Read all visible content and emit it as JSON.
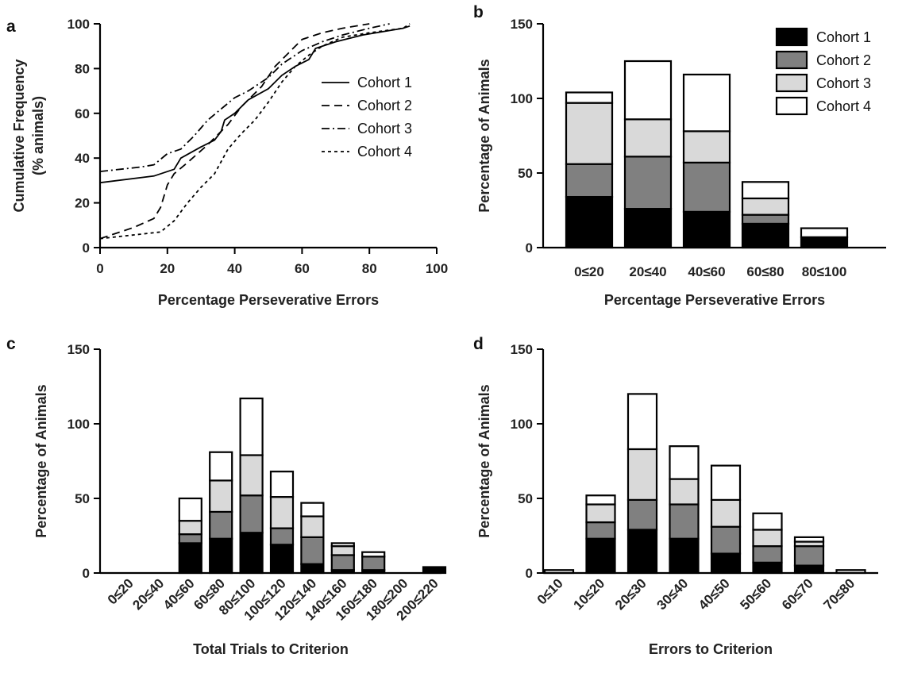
{
  "chart_data": [
    {
      "panel": "a",
      "type": "line",
      "xlabel": "Percentage Perseverative Errors",
      "ylabel": "Cumulative Frequency (% animals)",
      "ylabel_lines": [
        "Cumulative Frequency",
        "(% animals)"
      ],
      "xlim": [
        0,
        100
      ],
      "ylim": [
        0,
        100
      ],
      "xticks": [
        0,
        20,
        40,
        60,
        80,
        100
      ],
      "yticks": [
        0,
        20,
        40,
        60,
        80,
        100
      ],
      "legend_position": "right",
      "series": [
        {
          "name": "Cohort 1",
          "dash": "solid",
          "points": [
            [
              0,
              29
            ],
            [
              16,
              32
            ],
            [
              22,
              35
            ],
            [
              24,
              40
            ],
            [
              30,
              45
            ],
            [
              34,
              48
            ],
            [
              36,
              52
            ],
            [
              37,
              57
            ],
            [
              40,
              60
            ],
            [
              44,
              66
            ],
            [
              50,
              71
            ],
            [
              54,
              77
            ],
            [
              58,
              81
            ],
            [
              62,
              84
            ],
            [
              64,
              89
            ],
            [
              70,
              92
            ],
            [
              78,
              95
            ],
            [
              90,
              98
            ],
            [
              92,
              99
            ]
          ]
        },
        {
          "name": "Cohort 2",
          "dash": "long",
          "points": [
            [
              0,
              4
            ],
            [
              10,
              9
            ],
            [
              16,
              13
            ],
            [
              18,
              18
            ],
            [
              20,
              28
            ],
            [
              22,
              33
            ],
            [
              26,
              38
            ],
            [
              32,
              46
            ],
            [
              38,
              55
            ],
            [
              42,
              63
            ],
            [
              48,
              72
            ],
            [
              52,
              81
            ],
            [
              56,
              87
            ],
            [
              60,
              93
            ],
            [
              66,
              96
            ],
            [
              72,
              98
            ],
            [
              80,
              100
            ]
          ]
        },
        {
          "name": "Cohort 3",
          "dash": "dashdot",
          "points": [
            [
              0,
              34
            ],
            [
              12,
              36
            ],
            [
              16,
              37
            ],
            [
              20,
              42
            ],
            [
              24,
              44
            ],
            [
              28,
              50
            ],
            [
              32,
              57
            ],
            [
              36,
              62
            ],
            [
              40,
              67
            ],
            [
              44,
              70
            ],
            [
              50,
              76
            ],
            [
              54,
              82
            ],
            [
              60,
              88
            ],
            [
              66,
              92
            ],
            [
              72,
              95
            ],
            [
              80,
              98
            ],
            [
              86,
              100
            ]
          ]
        },
        {
          "name": "Cohort 4",
          "dash": "dotted",
          "points": [
            [
              0,
              4
            ],
            [
              6,
              5
            ],
            [
              12,
              6
            ],
            [
              18,
              7
            ],
            [
              22,
              12
            ],
            [
              26,
              20
            ],
            [
              30,
              27
            ],
            [
              34,
              33
            ],
            [
              38,
              44
            ],
            [
              42,
              51
            ],
            [
              46,
              57
            ],
            [
              50,
              65
            ],
            [
              54,
              74
            ],
            [
              58,
              81
            ],
            [
              62,
              86
            ],
            [
              66,
              90
            ],
            [
              72,
              94
            ],
            [
              80,
              96
            ],
            [
              90,
              98
            ],
            [
              92,
              100
            ]
          ]
        }
      ]
    },
    {
      "panel": "b",
      "type": "bar",
      "stacked": true,
      "xlabel": "Percentage Perseverative Errors",
      "ylabel": "Percentage of Animals",
      "ylim": [
        0,
        150
      ],
      "yticks": [
        0,
        50,
        100,
        150
      ],
      "legend_position": "top-right",
      "categories": [
        "0≤20",
        "20≤40",
        "40≤60",
        "60≤80",
        "80≤100"
      ],
      "series": [
        {
          "name": "Cohort 1",
          "color": "#000000",
          "values": [
            34,
            26,
            24,
            16,
            7
          ]
        },
        {
          "name": "Cohort 2",
          "color": "#808080",
          "values": [
            22,
            35,
            33,
            6,
            0
          ]
        },
        {
          "name": "Cohort 3",
          "color": "#d9d9d9",
          "values": [
            41,
            25,
            21,
            11,
            0
          ]
        },
        {
          "name": "Cohort 4",
          "color": "#ffffff",
          "values": [
            7,
            39,
            38,
            11,
            6
          ]
        }
      ]
    },
    {
      "panel": "c",
      "type": "bar",
      "stacked": true,
      "xlabel": "Total Trials to Criterion",
      "ylabel": "Percentage of Animals",
      "ylim": [
        0,
        150
      ],
      "yticks": [
        0,
        50,
        100,
        150
      ],
      "categories": [
        "0≤20",
        "20≤40",
        "40≤60",
        "60≤80",
        "80≤100",
        "100≤120",
        "120≤140",
        "140≤160",
        "160≤180",
        "180≤200",
        "200≤220"
      ],
      "series": [
        {
          "name": "Cohort 1",
          "color": "#000000",
          "values": [
            0,
            0,
            20,
            23,
            27,
            19,
            6,
            2,
            2,
            0,
            4
          ]
        },
        {
          "name": "Cohort 2",
          "color": "#808080",
          "values": [
            0,
            0,
            6,
            18,
            25,
            11,
            18,
            10,
            9,
            0,
            0
          ]
        },
        {
          "name": "Cohort 3",
          "color": "#d9d9d9",
          "values": [
            0,
            0,
            9,
            21,
            27,
            21,
            14,
            6,
            0,
            0,
            0
          ]
        },
        {
          "name": "Cohort 4",
          "color": "#ffffff",
          "values": [
            0,
            0,
            15,
            19,
            38,
            17,
            9,
            2,
            3,
            0,
            0
          ]
        }
      ]
    },
    {
      "panel": "d",
      "type": "bar",
      "stacked": true,
      "xlabel": "Errors to Criterion",
      "ylabel": "Percentage of Animals",
      "ylim": [
        0,
        150
      ],
      "yticks": [
        0,
        50,
        100,
        150
      ],
      "categories": [
        "0≤10",
        "10≤20",
        "20≤30",
        "30≤40",
        "40≤50",
        "50≤60",
        "60≤70",
        "70≤80"
      ],
      "series": [
        {
          "name": "Cohort 1",
          "color": "#000000",
          "values": [
            0,
            23,
            29,
            23,
            13,
            7,
            5,
            0
          ]
        },
        {
          "name": "Cohort 2",
          "color": "#808080",
          "values": [
            0,
            11,
            20,
            23,
            18,
            11,
            13,
            0
          ]
        },
        {
          "name": "Cohort 3",
          "color": "#d9d9d9",
          "values": [
            2,
            12,
            34,
            17,
            18,
            11,
            3,
            2
          ]
        },
        {
          "name": "Cohort 4",
          "color": "#ffffff",
          "values": [
            0,
            6,
            37,
            22,
            23,
            11,
            3,
            0
          ]
        }
      ]
    }
  ]
}
